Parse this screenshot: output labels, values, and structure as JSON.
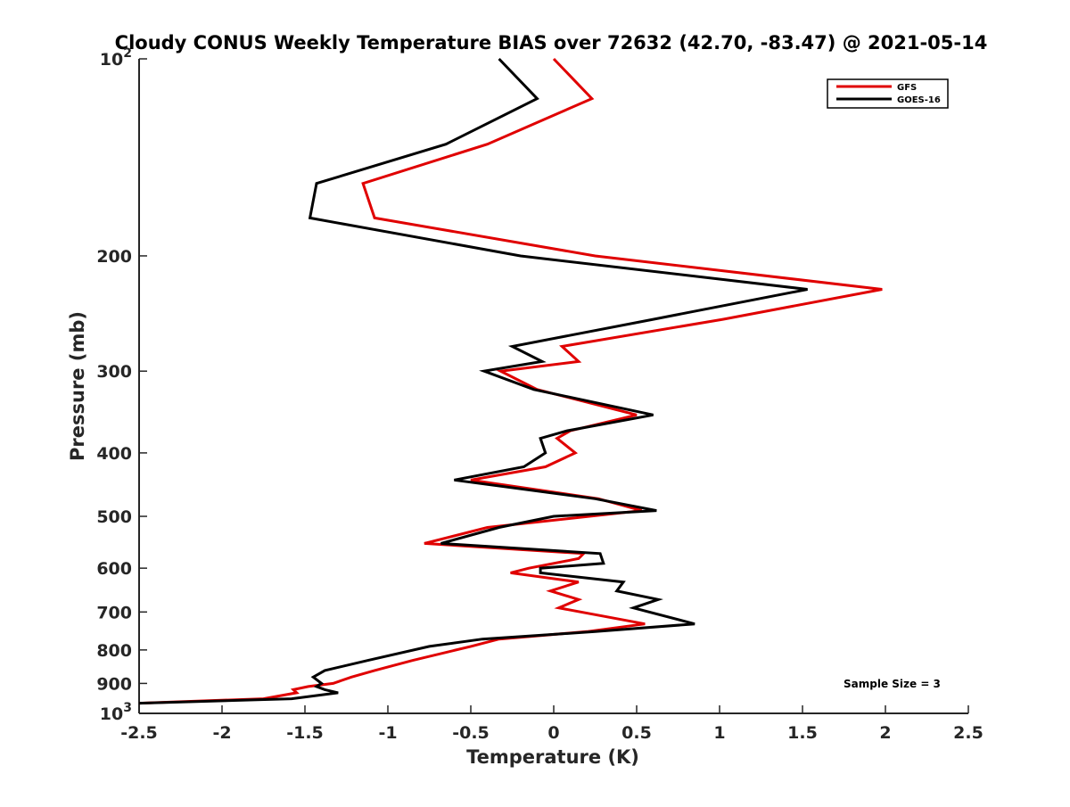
{
  "chart_data": {
    "type": "line",
    "title": "Cloudy CONUS Weekly Temperature BIAS over 72632 (42.70, -83.47) @ 2021-05-14",
    "xlabel": "Temperature (K)",
    "ylabel": "Pressure (mb)",
    "xlim": [
      -2.5,
      2.5
    ],
    "ylim": [
      100,
      1000
    ],
    "y_scale": "log",
    "y_reversed": true,
    "grid": false,
    "legend_position": "top-right",
    "x_ticks": [
      "-2.5",
      "-2",
      "-1.5",
      "-1",
      "-0.5",
      "0",
      "0.5",
      "1",
      "1.5",
      "2",
      "2.5"
    ],
    "y_ticks": [
      {
        "value": 100,
        "base": "10",
        "exp": "2"
      },
      {
        "value": 200,
        "label": "200"
      },
      {
        "value": 300,
        "label": "300"
      },
      {
        "value": 400,
        "label": "400"
      },
      {
        "value": 500,
        "label": "500"
      },
      {
        "value": 600,
        "label": "600"
      },
      {
        "value": 700,
        "label": "700"
      },
      {
        "value": 800,
        "label": "800"
      },
      {
        "value": 900,
        "label": "900"
      },
      {
        "value": 1000,
        "base": "10",
        "exp": "3"
      }
    ],
    "annotation": "Sample Size = 3",
    "series": [
      {
        "name": "GFS",
        "color": "#e00000",
        "points": [
          [
            0.0,
            100
          ],
          [
            0.23,
            115
          ],
          [
            -0.4,
            135
          ],
          [
            -1.15,
            155
          ],
          [
            -1.08,
            175
          ],
          [
            0.25,
            200
          ],
          [
            1.98,
            225
          ],
          [
            1.02,
            250
          ],
          [
            0.05,
            275
          ],
          [
            0.15,
            290
          ],
          [
            -0.32,
            300
          ],
          [
            -0.1,
            320
          ],
          [
            0.5,
            350
          ],
          [
            0.1,
            370
          ],
          [
            0.02,
            380
          ],
          [
            0.13,
            400
          ],
          [
            -0.05,
            420
          ],
          [
            -0.5,
            440
          ],
          [
            0.27,
            470
          ],
          [
            0.53,
            490
          ],
          [
            -0.4,
            520
          ],
          [
            -0.78,
            550
          ],
          [
            0.18,
            570
          ],
          [
            0.15,
            580
          ],
          [
            -0.15,
            600
          ],
          [
            -0.26,
            610
          ],
          [
            0.15,
            630
          ],
          [
            -0.02,
            650
          ],
          [
            0.15,
            670
          ],
          [
            0.03,
            690
          ],
          [
            0.55,
            730
          ],
          [
            0.2,
            750
          ],
          [
            -0.33,
            770
          ],
          [
            -0.5,
            790
          ],
          [
            -0.85,
            830
          ],
          [
            -1.08,
            860
          ],
          [
            -1.22,
            880
          ],
          [
            -1.33,
            900
          ],
          [
            -1.48,
            910
          ],
          [
            -1.57,
            920
          ],
          [
            -1.55,
            930
          ],
          [
            -1.75,
            950
          ],
          [
            -2.5,
            965
          ]
        ]
      },
      {
        "name": "GOES-16",
        "color": "#000000",
        "points": [
          [
            -0.33,
            100
          ],
          [
            -0.1,
            115
          ],
          [
            -0.65,
            135
          ],
          [
            -1.43,
            155
          ],
          [
            -1.47,
            175
          ],
          [
            -0.2,
            200
          ],
          [
            1.53,
            225
          ],
          [
            0.6,
            250
          ],
          [
            -0.25,
            275
          ],
          [
            -0.07,
            290
          ],
          [
            -0.42,
            300
          ],
          [
            -0.12,
            320
          ],
          [
            0.6,
            350
          ],
          [
            0.08,
            370
          ],
          [
            -0.08,
            380
          ],
          [
            -0.05,
            400
          ],
          [
            -0.18,
            420
          ],
          [
            -0.6,
            440
          ],
          [
            0.25,
            470
          ],
          [
            0.62,
            490
          ],
          [
            0.0,
            500
          ],
          [
            -0.33,
            520
          ],
          [
            -0.68,
            550
          ],
          [
            0.28,
            570
          ],
          [
            0.3,
            590
          ],
          [
            -0.08,
            600
          ],
          [
            -0.08,
            610
          ],
          [
            0.42,
            630
          ],
          [
            0.38,
            650
          ],
          [
            0.63,
            670
          ],
          [
            0.48,
            690
          ],
          [
            0.85,
            730
          ],
          [
            0.25,
            750
          ],
          [
            -0.43,
            770
          ],
          [
            -0.75,
            790
          ],
          [
            -1.12,
            830
          ],
          [
            -1.38,
            860
          ],
          [
            -1.45,
            880
          ],
          [
            -1.4,
            900
          ],
          [
            -1.43,
            910
          ],
          [
            -1.38,
            920
          ],
          [
            -1.3,
            930
          ],
          [
            -1.58,
            950
          ],
          [
            -2.5,
            965
          ]
        ]
      }
    ]
  }
}
